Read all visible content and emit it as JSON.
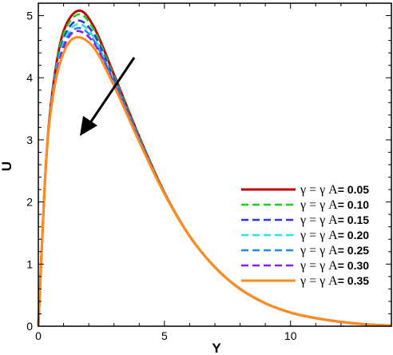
{
  "chart_data": {
    "type": "line",
    "xlabel": "Y",
    "ylabel": "U",
    "xlim": [
      0,
      14
    ],
    "ylim": [
      0,
      5.2
    ],
    "x_ticks": [
      "0",
      "5",
      "10"
    ],
    "y_ticks": [
      "0",
      "1",
      "2",
      "3",
      "4",
      "5"
    ],
    "grid": false,
    "legend_position": "lower-right",
    "annotation": "arrow pointing down-left showing U decreases as γ = γA increases",
    "series": [
      {
        "name": "γ = γ A= 0.05",
        "legend_prefix": "γ = γ A",
        "legend_value": "= 0.05",
        "color": "#c00000",
        "style": "solid",
        "peak_x": 1.6,
        "peak_y": 5.08,
        "values": [
          [
            0,
            0
          ],
          [
            0.3,
            2.6
          ],
          [
            0.6,
            3.9
          ],
          [
            1.0,
            4.75
          ],
          [
            1.6,
            5.08
          ],
          [
            2.2,
            4.82
          ],
          [
            3,
            4.05
          ],
          [
            4,
            3.05
          ],
          [
            5,
            2.15
          ],
          [
            6,
            1.45
          ],
          [
            7,
            0.95
          ],
          [
            8,
            0.6
          ],
          [
            9,
            0.37
          ],
          [
            10,
            0.22
          ],
          [
            11,
            0.13
          ],
          [
            12,
            0.07
          ],
          [
            13,
            0.03
          ],
          [
            14,
            0.01
          ]
        ]
      },
      {
        "name": "γ = γ A= 0.10",
        "legend_prefix": "γ = γ A",
        "legend_value": "= 0.10",
        "color": "#22cc22",
        "style": "dashed",
        "peak_x": 1.6,
        "peak_y": 5.02,
        "values": [
          [
            0,
            0
          ],
          [
            0.3,
            2.6
          ],
          [
            0.6,
            3.88
          ],
          [
            1.0,
            4.7
          ],
          [
            1.6,
            5.02
          ],
          [
            2.2,
            4.77
          ],
          [
            3,
            4.02
          ],
          [
            4,
            3.04
          ],
          [
            5,
            2.15
          ],
          [
            6,
            1.45
          ],
          [
            7,
            0.95
          ],
          [
            8,
            0.6
          ],
          [
            9,
            0.37
          ],
          [
            10,
            0.22
          ],
          [
            11,
            0.13
          ],
          [
            12,
            0.07
          ],
          [
            13,
            0.03
          ],
          [
            14,
            0.01
          ]
        ]
      },
      {
        "name": "γ = γ A= 0.15",
        "legend_prefix": "γ = γ A",
        "legend_value": "= 0.15",
        "color": "#3333dd",
        "style": "dashed",
        "peak_x": 1.55,
        "peak_y": 4.92,
        "values": [
          [
            0,
            0
          ],
          [
            0.3,
            2.6
          ],
          [
            0.6,
            3.85
          ],
          [
            1.0,
            4.62
          ],
          [
            1.55,
            4.92
          ],
          [
            2.2,
            4.7
          ],
          [
            3,
            3.98
          ],
          [
            4,
            3.02
          ],
          [
            5,
            2.14
          ],
          [
            6,
            1.45
          ],
          [
            7,
            0.95
          ],
          [
            8,
            0.6
          ],
          [
            9,
            0.37
          ],
          [
            10,
            0.22
          ],
          [
            11,
            0.13
          ],
          [
            12,
            0.07
          ],
          [
            13,
            0.03
          ],
          [
            14,
            0.01
          ]
        ]
      },
      {
        "name": "γ = γ A= 0.20",
        "legend_prefix": "γ = γ A",
        "legend_value": "= 0.20",
        "color": "#33e0e0",
        "style": "dashed",
        "peak_x": 1.55,
        "peak_y": 4.86,
        "values": [
          [
            0,
            0
          ],
          [
            0.3,
            2.6
          ],
          [
            0.6,
            3.83
          ],
          [
            1.0,
            4.57
          ],
          [
            1.55,
            4.86
          ],
          [
            2.2,
            4.65
          ],
          [
            3,
            3.95
          ],
          [
            4,
            3.01
          ],
          [
            5,
            2.14
          ],
          [
            6,
            1.45
          ],
          [
            7,
            0.95
          ],
          [
            8,
            0.6
          ],
          [
            9,
            0.37
          ],
          [
            10,
            0.22
          ],
          [
            11,
            0.13
          ],
          [
            12,
            0.07
          ],
          [
            13,
            0.03
          ],
          [
            14,
            0.01
          ]
        ]
      },
      {
        "name": "γ = γ A= 0.25",
        "legend_prefix": "γ = γ A",
        "legend_value": "= 0.25",
        "color": "#2288ee",
        "style": "dashed",
        "peak_x": 1.55,
        "peak_y": 4.8,
        "values": [
          [
            0,
            0
          ],
          [
            0.3,
            2.6
          ],
          [
            0.6,
            3.8
          ],
          [
            1.0,
            4.52
          ],
          [
            1.55,
            4.8
          ],
          [
            2.2,
            4.6
          ],
          [
            3,
            3.93
          ],
          [
            4,
            3.0
          ],
          [
            5,
            2.14
          ],
          [
            6,
            1.45
          ],
          [
            7,
            0.95
          ],
          [
            8,
            0.6
          ],
          [
            9,
            0.37
          ],
          [
            10,
            0.22
          ],
          [
            11,
            0.13
          ],
          [
            12,
            0.07
          ],
          [
            13,
            0.03
          ],
          [
            14,
            0.01
          ]
        ]
      },
      {
        "name": "γ = γ A= 0.30",
        "legend_prefix": "γ = γ A",
        "legend_value": "= 0.30",
        "color": "#8822dd",
        "style": "dashed",
        "peak_x": 1.5,
        "peak_y": 4.75,
        "values": [
          [
            0,
            0
          ],
          [
            0.3,
            2.6
          ],
          [
            0.6,
            3.78
          ],
          [
            1.0,
            4.48
          ],
          [
            1.5,
            4.75
          ],
          [
            2.2,
            4.56
          ],
          [
            3,
            3.91
          ],
          [
            4,
            2.99
          ],
          [
            5,
            2.13
          ],
          [
            6,
            1.45
          ],
          [
            7,
            0.95
          ],
          [
            8,
            0.6
          ],
          [
            9,
            0.37
          ],
          [
            10,
            0.22
          ],
          [
            11,
            0.13
          ],
          [
            12,
            0.07
          ],
          [
            13,
            0.03
          ],
          [
            14,
            0.01
          ]
        ]
      },
      {
        "name": "γ = γ A= 0.35",
        "legend_prefix": "γ = γ A",
        "legend_value": "= 0.35",
        "color": "#ff8c1a",
        "style": "solid",
        "peak_x": 1.5,
        "peak_y": 4.65,
        "values": [
          [
            0,
            0
          ],
          [
            0.3,
            2.6
          ],
          [
            0.6,
            3.75
          ],
          [
            1.0,
            4.4
          ],
          [
            1.5,
            4.65
          ],
          [
            2.2,
            4.48
          ],
          [
            3,
            3.87
          ],
          [
            4,
            2.97
          ],
          [
            5,
            2.13
          ],
          [
            6,
            1.45
          ],
          [
            7,
            0.95
          ],
          [
            8,
            0.6
          ],
          [
            9,
            0.37
          ],
          [
            10,
            0.22
          ],
          [
            11,
            0.13
          ],
          [
            12,
            0.07
          ],
          [
            13,
            0.03
          ],
          [
            14,
            0.01
          ]
        ]
      }
    ]
  }
}
